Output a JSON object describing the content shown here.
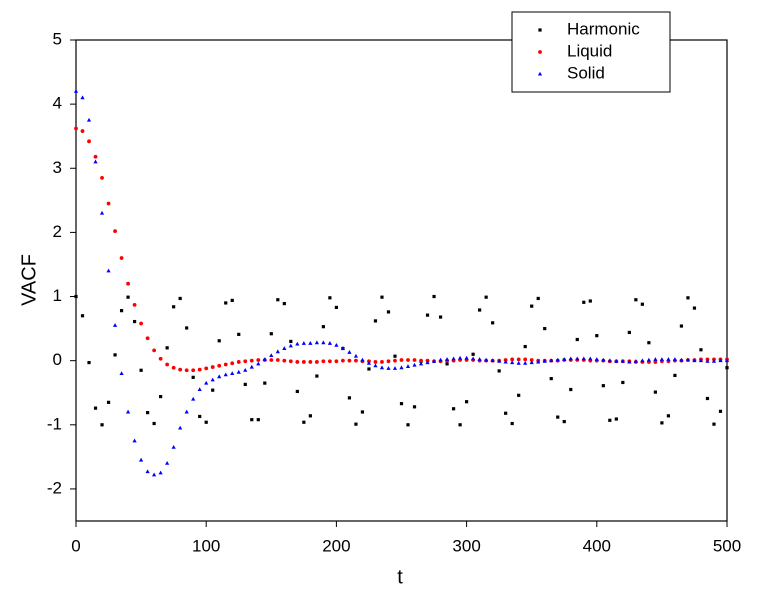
{
  "chart_data": {
    "type": "scatter",
    "xlabel": "t",
    "ylabel": "VACF",
    "xlim": [
      0,
      500
    ],
    "ylim": [
      -2.5,
      5
    ],
    "xticks": [
      0,
      100,
      200,
      300,
      400,
      500
    ],
    "yticks": [
      -2,
      -1,
      0,
      1,
      2,
      3,
      4,
      5
    ],
    "legend": "top-right",
    "x": [
      0,
      5,
      10,
      15,
      20,
      25,
      30,
      35,
      40,
      45,
      50,
      55,
      60,
      65,
      70,
      75,
      80,
      85,
      90,
      95,
      100,
      105,
      110,
      115,
      120,
      125,
      130,
      135,
      140,
      145,
      150,
      155,
      160,
      165,
      170,
      175,
      180,
      185,
      190,
      195,
      200,
      205,
      210,
      215,
      220,
      225,
      230,
      235,
      240,
      245,
      250,
      255,
      260,
      265,
      270,
      275,
      280,
      285,
      290,
      295,
      300,
      305,
      310,
      315,
      320,
      325,
      330,
      335,
      340,
      345,
      350,
      355,
      360,
      365,
      370,
      375,
      380,
      385,
      390,
      395,
      400,
      405,
      410,
      415,
      420,
      425,
      430,
      435,
      440,
      445,
      450,
      455,
      460,
      465,
      470,
      475,
      480,
      485,
      490,
      495,
      500
    ],
    "series": [
      {
        "name": "Harmonic",
        "color": "#000000",
        "marker": "square",
        "values": [
          1,
          0.7,
          -0.03,
          -0.74,
          -1.0,
          -0.65,
          0.09,
          0.78,
          0.99,
          0.61,
          -0.15,
          -0.81,
          -0.98,
          -0.56,
          0.2,
          0.84,
          0.97,
          0.51,
          -0.26,
          -0.87,
          -0.96,
          -0.46,
          0.31,
          0.9,
          0.94,
          0.41,
          -0.37,
          -0.92,
          -0.92,
          -0.35,
          0.42,
          0.95,
          0.89,
          0.3,
          -0.48,
          -0.96,
          -0.86,
          -0.24,
          0.53,
          0.98,
          0.83,
          0.19,
          -0.58,
          -0.99,
          -0.8,
          -0.13,
          0.62,
          0.99,
          0.76,
          0.07,
          -0.67,
          -1.0,
          -0.72,
          -0.01,
          0.71,
          1.0,
          0.68,
          -0.05,
          -0.75,
          -1.0,
          -0.64,
          0.1,
          0.79,
          0.99,
          0.59,
          -0.16,
          -0.82,
          -0.98,
          -0.54,
          0.22,
          0.85,
          0.97,
          0.5,
          -0.28,
          -0.88,
          -0.95,
          -0.45,
          0.33,
          0.91,
          0.93,
          0.39,
          -0.39,
          -0.93,
          -0.91,
          -0.34,
          0.44,
          0.95,
          0.88,
          0.28,
          -0.49,
          -0.97,
          -0.86,
          -0.23,
          0.54,
          0.98,
          0.82,
          0.17,
          -0.59,
          -0.99,
          -0.79,
          -0.11
        ]
      },
      {
        "name": "Liquid",
        "color": "#ff0000",
        "marker": "circle",
        "values": [
          3.62,
          3.58,
          3.42,
          3.18,
          2.85,
          2.45,
          2.02,
          1.6,
          1.2,
          0.87,
          0.58,
          0.35,
          0.16,
          0.03,
          -0.06,
          -0.11,
          -0.14,
          -0.15,
          -0.15,
          -0.14,
          -0.12,
          -0.1,
          -0.08,
          -0.06,
          -0.04,
          -0.02,
          -0.01,
          0,
          0.01,
          0.01,
          0.01,
          0.01,
          0,
          -0.01,
          -0.02,
          -0.02,
          -0.02,
          -0.02,
          -0.01,
          -0.01,
          -0.01,
          0,
          0,
          0,
          -0.01,
          -0.01,
          -0.02,
          -0.02,
          -0.01,
          0,
          0.01,
          0.01,
          0.01,
          0,
          0,
          -0.01,
          -0.01,
          0,
          0,
          0.01,
          0.01,
          0.01,
          0,
          0,
          0,
          0,
          0.01,
          0.02,
          0.02,
          0.02,
          0.01,
          0,
          0,
          0,
          0,
          0.01,
          0.01,
          0.01,
          0.01,
          0,
          0,
          0,
          -0.01,
          -0.01,
          -0.01,
          -0.01,
          -0.02,
          -0.02,
          -0.02,
          -0.02,
          -0.01,
          -0.01,
          0,
          0,
          0.01,
          0.01,
          0.02,
          0.02,
          0.02,
          0.02,
          0.02
        ]
      },
      {
        "name": "Solid",
        "color": "#0000ff",
        "marker": "triangle",
        "values": [
          4.2,
          4.1,
          3.75,
          3.1,
          2.3,
          1.4,
          0.55,
          -0.2,
          -0.8,
          -1.25,
          -1.55,
          -1.73,
          -1.78,
          -1.75,
          -1.6,
          -1.35,
          -1.05,
          -0.8,
          -0.6,
          -0.45,
          -0.35,
          -0.3,
          -0.25,
          -0.22,
          -0.2,
          -0.18,
          -0.15,
          -0.1,
          -0.05,
          0.02,
          0.08,
          0.14,
          0.19,
          0.23,
          0.26,
          0.27,
          0.27,
          0.28,
          0.28,
          0.27,
          0.24,
          0.19,
          0.13,
          0.07,
          0.01,
          -0.04,
          -0.08,
          -0.11,
          -0.12,
          -0.12,
          -0.11,
          -0.09,
          -0.07,
          -0.05,
          -0.03,
          -0.01,
          0.01,
          0.02,
          0.03,
          0.04,
          0.04,
          0.03,
          0.02,
          0.01,
          0,
          -0.01,
          -0.02,
          -0.03,
          -0.04,
          -0.04,
          -0.03,
          -0.02,
          -0.01,
          0,
          0.01,
          0.02,
          0.03,
          0.03,
          0.03,
          0.03,
          0.02,
          0.01,
          0,
          -0.01,
          -0.01,
          -0.02,
          -0.01,
          0,
          0.01,
          0.02,
          0.02,
          0.02,
          0.02,
          0.01,
          0.01,
          0,
          0,
          -0.01,
          -0.01,
          0,
          0
        ]
      }
    ]
  }
}
